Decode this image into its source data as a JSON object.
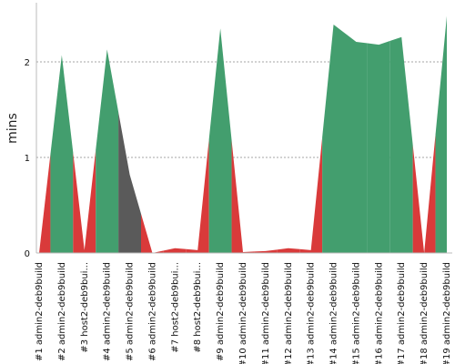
{
  "chart_data": {
    "type": "area",
    "title": "",
    "xlabel": "",
    "ylabel": "mins",
    "ylim": [
      0,
      2.6
    ],
    "yticks": [
      0,
      1,
      2
    ],
    "grid": "horizontal dotted",
    "categories": [
      "#1 admin2-deb9build",
      "#2 admin2-deb9build",
      "#3 host2-deb9bui...",
      "#4 admin2-deb9build",
      "#5 admin2-deb9build",
      "#6 admin2-deb9build",
      "#7 host2-deb9bui...",
      "#8 host2-deb9bui...",
      "#9 admin2-deb9build",
      "#10 admin2-deb9build",
      "#11 admin2-deb9build",
      "#12 admin2-deb9build",
      "#13 admin2-deb9build",
      "#14 admin2-deb9build",
      "#15 admin2-deb9build",
      "#16 admin2-deb9build",
      "#17 admin2-deb9build",
      "#18 admin2-deb9build",
      "#19 admin2-deb9build"
    ],
    "values": [
      0.0,
      2.07,
      0.03,
      2.13,
      0.82,
      0.0,
      0.05,
      0.03,
      2.35,
      0.01,
      0.02,
      0.05,
      0.03,
      2.39,
      2.21,
      2.18,
      2.26,
      0.0,
      2.48
    ],
    "status": [
      "failure",
      "success",
      "failure",
      "success",
      "aborted",
      "failure",
      "failure",
      "failure",
      "success",
      "failure",
      "failure",
      "failure",
      "failure",
      "success",
      "success",
      "success",
      "success",
      "failure",
      "success"
    ],
    "colors": {
      "success": "#439e6e",
      "failure": "#d93a3a",
      "aborted": "#5a5a5a",
      "grid": "#888888",
      "axis": "#bbbbbb"
    }
  }
}
